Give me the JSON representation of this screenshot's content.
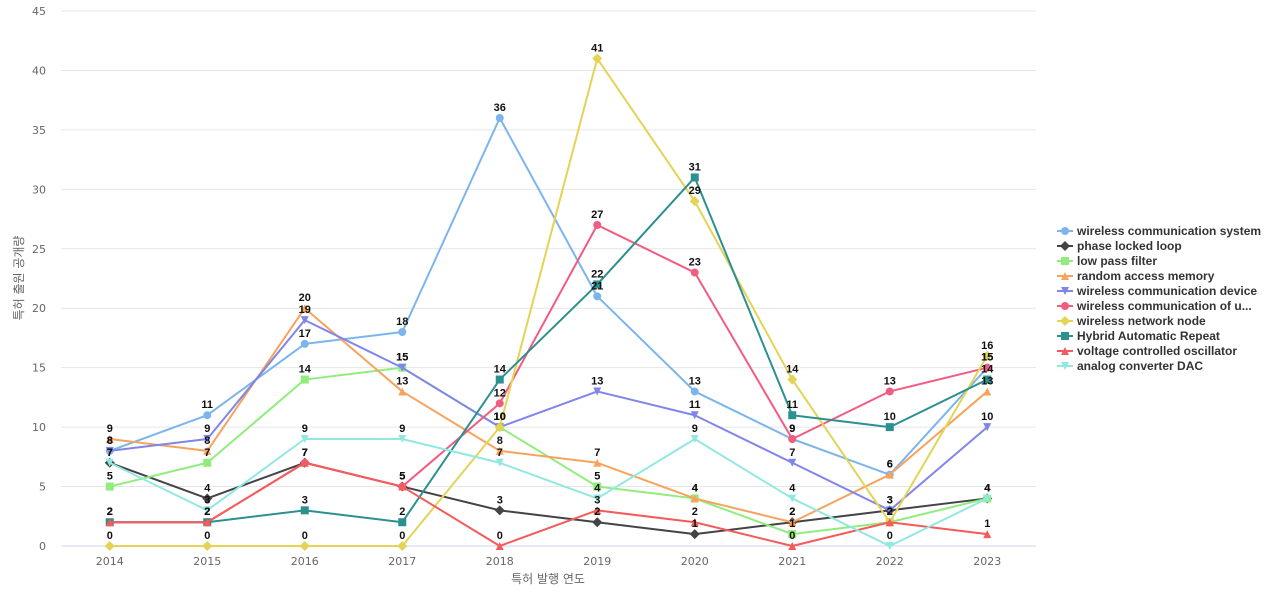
{
  "chart_data": {
    "type": "line",
    "title": "",
    "xlabel": "특허 발행 연도",
    "ylabel": "특허 출원 공개량",
    "ylim": [
      0,
      45
    ],
    "yticks": [
      0,
      5,
      10,
      15,
      20,
      25,
      30,
      35,
      40,
      45
    ],
    "grid": true,
    "legend_position": "right",
    "categories": [
      "2014",
      "2015",
      "2016",
      "2017",
      "2018",
      "2019",
      "2020",
      "2021",
      "2022",
      "2023"
    ],
    "series": [
      {
        "name": "wireless communication system",
        "color": "#7cb5ec",
        "marker": "circle",
        "values": [
          8,
          11,
          17,
          18,
          36,
          21,
          13,
          9,
          6,
          15
        ]
      },
      {
        "name": "phase locked loop",
        "color": "#434348",
        "marker": "diamond",
        "values": [
          7,
          4,
          7,
          5,
          3,
          2,
          1,
          2,
          3,
          4
        ]
      },
      {
        "name": "low pass filter",
        "color": "#90ed7d",
        "marker": "square",
        "values": [
          5,
          7,
          14,
          15,
          10,
          5,
          4,
          1,
          2,
          4
        ]
      },
      {
        "name": "random access memory",
        "color": "#f7a35c",
        "marker": "triangle",
        "values": [
          9,
          8,
          20,
          13,
          8,
          7,
          4,
          2,
          6,
          13
        ]
      },
      {
        "name": "wireless communication device",
        "color": "#8085e9",
        "marker": "triangle-down",
        "values": [
          8,
          9,
          19,
          15,
          10,
          13,
          11,
          7,
          3,
          10
        ]
      },
      {
        "name": "wireless communication of u...",
        "color": "#f15c80",
        "marker": "circle",
        "values": [
          2,
          2,
          7,
          5,
          12,
          27,
          23,
          9,
          13,
          15
        ]
      },
      {
        "name": "wireless network node",
        "color": "#e4d354",
        "marker": "diamond",
        "values": [
          0,
          0,
          0,
          0,
          10,
          41,
          29,
          14,
          2,
          16
        ]
      },
      {
        "name": "Hybrid Automatic Repeat",
        "color": "#2b908f",
        "marker": "square",
        "values": [
          2,
          2,
          3,
          2,
          14,
          22,
          31,
          11,
          10,
          14
        ]
      },
      {
        "name": "voltage controlled oscillator",
        "color": "#f45b5b",
        "marker": "triangle",
        "values": [
          2,
          2,
          7,
          5,
          0,
          3,
          2,
          0,
          2,
          1
        ]
      },
      {
        "name": "analog converter DAC",
        "color": "#91e8e1",
        "marker": "triangle-down",
        "values": [
          7,
          3,
          9,
          9,
          7,
          4,
          9,
          4,
          0,
          4
        ]
      }
    ]
  }
}
